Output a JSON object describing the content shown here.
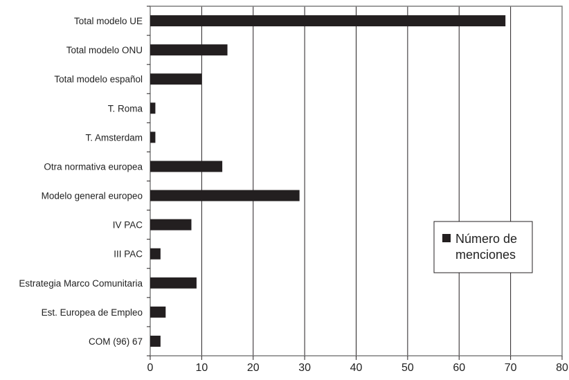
{
  "chart_data": {
    "type": "bar",
    "orientation": "horizontal",
    "categories": [
      "Total modelo UE",
      "Total modelo ONU",
      "Total modelo español",
      "T. Roma",
      "T. Amsterdam",
      "Otra normativa europea",
      "Modelo general europeo",
      "IV PAC",
      "III PAC",
      "Estrategia Marco Comunitaria",
      "Est. Europea de Empleo",
      "COM (96) 67"
    ],
    "series": [
      {
        "name": "Número de menciones",
        "values": [
          69,
          15,
          10,
          1,
          1,
          14,
          29,
          8,
          2,
          9,
          3,
          2
        ],
        "color": "#231f20"
      }
    ],
    "xlim": [
      0,
      80
    ],
    "xticks": [
      0,
      10,
      20,
      30,
      40,
      50,
      60,
      70,
      80
    ],
    "grid": "vertical",
    "legend": {
      "position": "right",
      "line1": "Número de",
      "line2": "menciones"
    },
    "title": "",
    "xlabel": "",
    "ylabel": ""
  }
}
